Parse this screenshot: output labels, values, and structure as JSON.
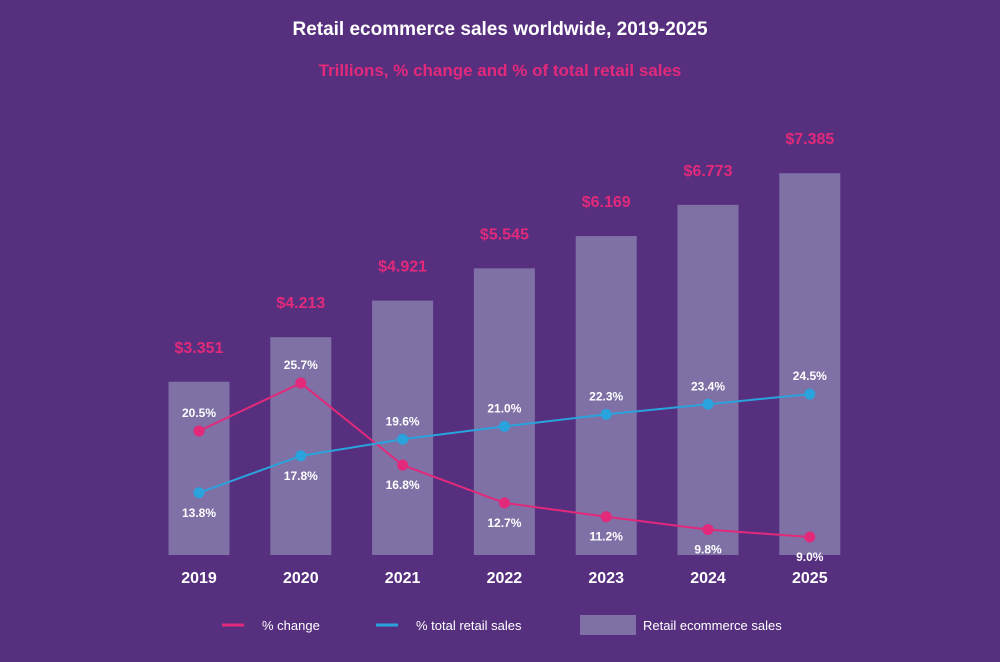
{
  "chart_data": {
    "type": "bar",
    "title": "Retail ecommerce sales worldwide, 2019-2025",
    "subtitle": "Trillions, % change and % of total retail sales",
    "categories": [
      "2019",
      "2020",
      "2021",
      "2022",
      "2023",
      "2024",
      "2025"
    ],
    "bar_series": {
      "name": "Retail ecommerce sales",
      "values": [
        3.351,
        4.213,
        4.921,
        5.545,
        6.169,
        6.773,
        7.385
      ],
      "labels": [
        "$3.351",
        "$4.213",
        "$4.921",
        "$5.545",
        "$6.169",
        "$6.773",
        "$7.385"
      ],
      "color": "#7f70a6"
    },
    "line_series": [
      {
        "name": "% change",
        "values": [
          20.5,
          25.7,
          16.8,
          12.7,
          11.2,
          9.8,
          9.0
        ],
        "labels": [
          "20.5%",
          "25.7%",
          "16.8%",
          "12.7%",
          "11.2%",
          "9.8%",
          "9.0%"
        ],
        "color": "#e2297a"
      },
      {
        "name": "% total retail sales",
        "values": [
          13.8,
          17.8,
          19.6,
          21.0,
          22.3,
          23.4,
          24.5
        ],
        "labels": [
          "13.8%",
          "17.8%",
          "19.6%",
          "21.0%",
          "22.3%",
          "23.4%",
          "24.5%"
        ],
        "color": "#2aa3dd"
      }
    ],
    "grid": false,
    "legend_position": "bottom"
  },
  "colors": {
    "background": "#56307f",
    "title_text": "#ffffff",
    "subtitle_text": "#e2297a"
  }
}
